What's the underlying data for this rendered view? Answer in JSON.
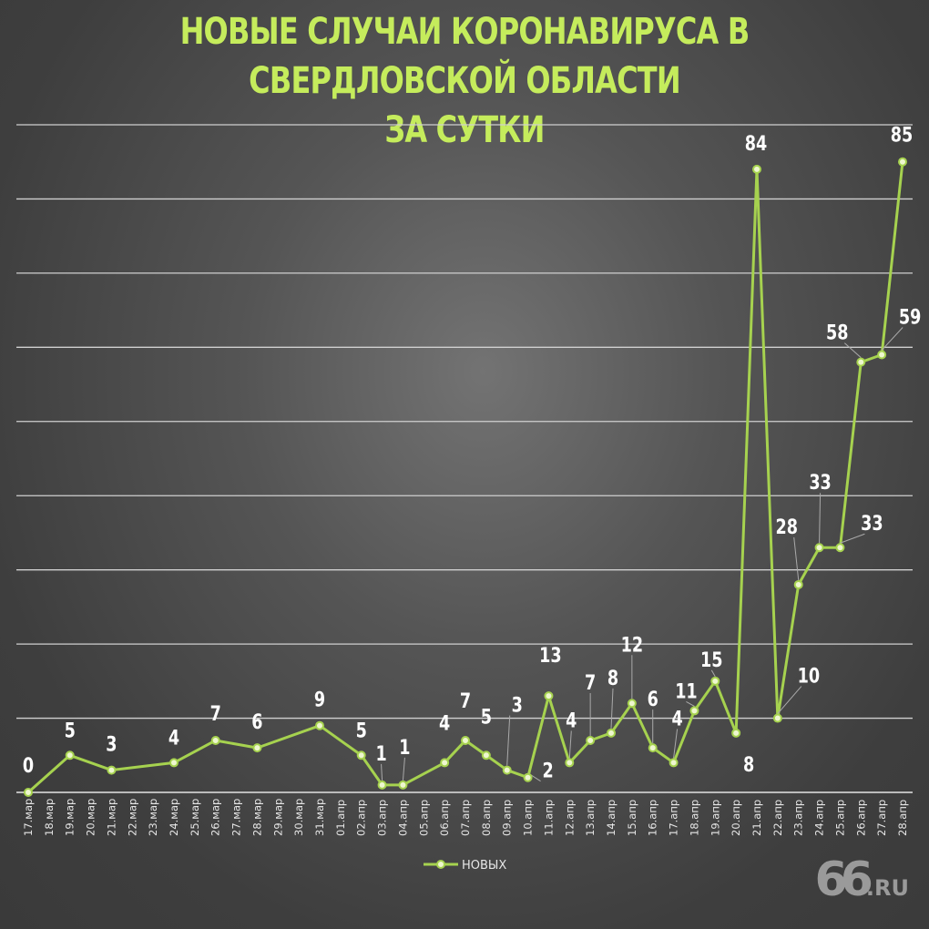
{
  "chart_data": {
    "type": "line",
    "title": "НОВЫЕ СЛУЧАИ КОРОНАВИРУСА В СВЕРДЛОВСКОЙ ОБЛАСТИ ЗА СУТКИ",
    "title_lines": [
      "НОВЫЕ СЛУЧАИ КОРОНАВИРУСА В СВЕРДЛОВСКОЙ ОБЛАСТИ",
      "ЗА СУТКИ"
    ],
    "xlabel": "",
    "ylabel": "",
    "ylim": [
      0,
      90
    ],
    "y_grid_step": 10,
    "grid": true,
    "legend_position": "bottom",
    "categories": [
      "17.мар",
      "18.мар",
      "19.мар",
      "20.мар",
      "21.мар",
      "22.мар",
      "23.мар",
      "24.мар",
      "25.мар",
      "26.мар",
      "27.мар",
      "28.мар",
      "29.мар",
      "30.мар",
      "31.мар",
      "01.апр",
      "02.апр",
      "03.апр",
      "04.апр",
      "05.апр",
      "06.апр",
      "07.апр",
      "08.апр",
      "09.апр",
      "10.апр",
      "11.апр",
      "12.апр",
      "13.апр",
      "14.апр",
      "15.апр",
      "16.апр",
      "17.апр",
      "18.апр",
      "19.апр",
      "20.апр",
      "21.апр",
      "22.апр",
      "23.апр",
      "24.апр",
      "25.апр",
      "26.апр",
      "27.апр",
      "28.апр"
    ],
    "series": [
      {
        "name": "НОВЫХ",
        "color": "#a6d24f",
        "points": [
          {
            "x": "17.мар",
            "y": 0
          },
          {
            "x": "19.мар",
            "y": 5
          },
          {
            "x": "21.мар",
            "y": 3
          },
          {
            "x": "24.мар",
            "y": 4
          },
          {
            "x": "26.мар",
            "y": 7
          },
          {
            "x": "28.мар",
            "y": 6
          },
          {
            "x": "31.мар",
            "y": 9
          },
          {
            "x": "02.апр",
            "y": 5
          },
          {
            "x": "03.апр",
            "y": 1
          },
          {
            "x": "04.апр",
            "y": 1
          },
          {
            "x": "06.апр",
            "y": 4
          },
          {
            "x": "07.апр",
            "y": 7
          },
          {
            "x": "08.апр",
            "y": 5
          },
          {
            "x": "09.апр",
            "y": 3
          },
          {
            "x": "10.апр",
            "y": 2
          },
          {
            "x": "11.апр",
            "y": 13
          },
          {
            "x": "12.апр",
            "y": 4
          },
          {
            "x": "13.апр",
            "y": 7
          },
          {
            "x": "14.апр",
            "y": 8
          },
          {
            "x": "15.апр",
            "y": 12
          },
          {
            "x": "16.апр",
            "y": 6
          },
          {
            "x": "17.апр",
            "y": 4
          },
          {
            "x": "18.апр",
            "y": 11
          },
          {
            "x": "19.апр",
            "y": 15
          },
          {
            "x": "20.апр",
            "y": 8
          },
          {
            "x": "21.апр",
            "y": 84
          },
          {
            "x": "22.апр",
            "y": 10
          },
          {
            "x": "23.апр",
            "y": 28
          },
          {
            "x": "24.апр",
            "y": 33
          },
          {
            "x": "25.апр",
            "y": 33
          },
          {
            "x": "26.апр",
            "y": 58
          },
          {
            "x": "27.апр",
            "y": 59
          },
          {
            "x": "28.апр",
            "y": 85
          }
        ]
      }
    ]
  },
  "logo": {
    "number": "66",
    "suffix": ".RU"
  }
}
